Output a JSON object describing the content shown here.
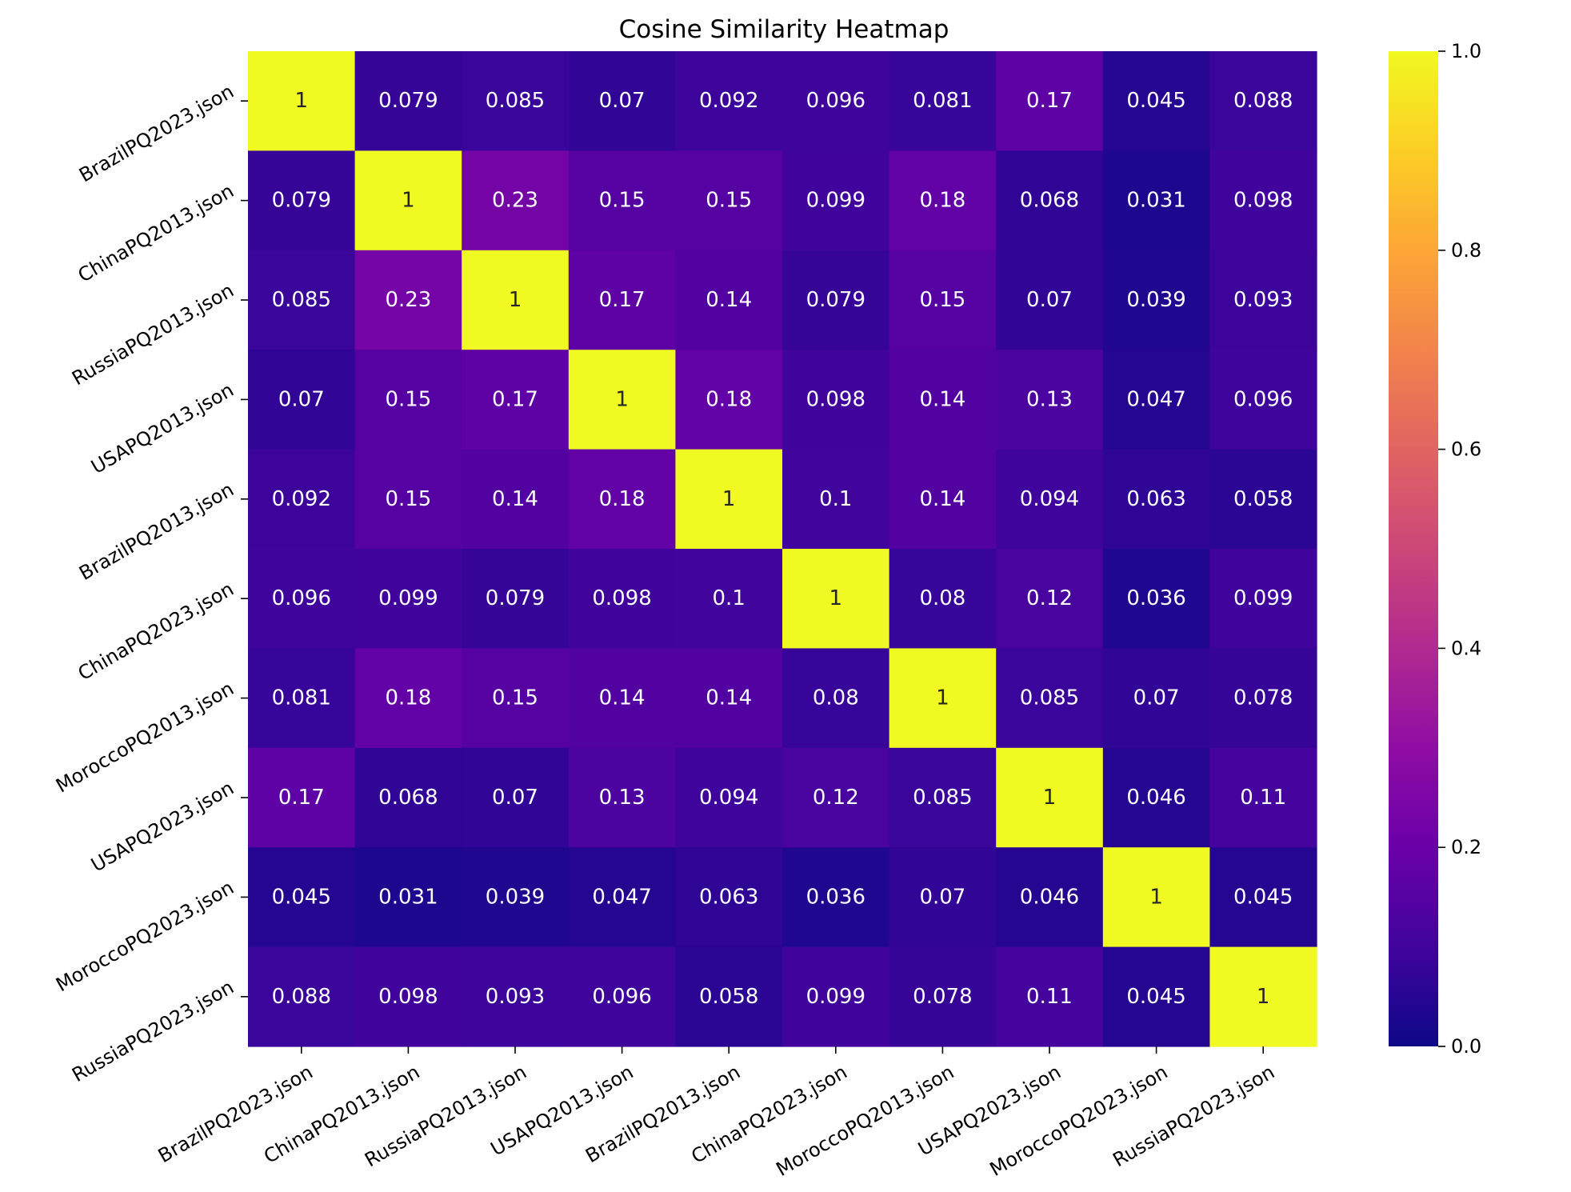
{
  "chart_data": {
    "type": "heatmap",
    "title": "Cosine Similarity Heatmap",
    "xlabel": "",
    "ylabel": "",
    "colormap": "plasma",
    "x_categories": [
      "BrazilPQ2023.json",
      "ChinaPQ2013.json",
      "RussiaPQ2013.json",
      "USAPQ2013.json",
      "BrazilPQ2013.json",
      "ChinaPQ2023.json",
      "MoroccoPQ2013.json",
      "USAPQ2023.json",
      "MoroccoPQ2023.json",
      "RussiaPQ2023.json"
    ],
    "y_categories": [
      "BrazilPQ2023.json",
      "ChinaPQ2013.json",
      "RussiaPQ2013.json",
      "USAPQ2013.json",
      "BrazilPQ2013.json",
      "ChinaPQ2023.json",
      "MoroccoPQ2013.json",
      "USAPQ2023.json",
      "MoroccoPQ2023.json",
      "RussiaPQ2023.json"
    ],
    "values": [
      [
        1,
        0.079,
        0.085,
        0.07,
        0.092,
        0.096,
        0.081,
        0.17,
        0.045,
        0.088
      ],
      [
        0.079,
        1,
        0.23,
        0.15,
        0.15,
        0.099,
        0.18,
        0.068,
        0.031,
        0.098
      ],
      [
        0.085,
        0.23,
        1,
        0.17,
        0.14,
        0.079,
        0.15,
        0.07,
        0.039,
        0.093
      ],
      [
        0.07,
        0.15,
        0.17,
        1,
        0.18,
        0.098,
        0.14,
        0.13,
        0.047,
        0.096
      ],
      [
        0.092,
        0.15,
        0.14,
        0.18,
        1,
        0.1,
        0.14,
        0.094,
        0.063,
        0.058
      ],
      [
        0.096,
        0.099,
        0.079,
        0.098,
        0.1,
        1,
        0.08,
        0.12,
        0.036,
        0.099
      ],
      [
        0.081,
        0.18,
        0.15,
        0.14,
        0.14,
        0.08,
        1,
        0.085,
        0.07,
        0.078
      ],
      [
        0.17,
        0.068,
        0.07,
        0.13,
        0.094,
        0.12,
        0.085,
        1,
        0.046,
        0.11
      ],
      [
        0.045,
        0.031,
        0.039,
        0.047,
        0.063,
        0.036,
        0.07,
        0.046,
        1,
        0.045
      ],
      [
        0.088,
        0.098,
        0.093,
        0.096,
        0.058,
        0.099,
        0.078,
        0.11,
        0.045,
        1
      ]
    ],
    "colorbar": {
      "range": [
        0.0,
        1.0
      ],
      "ticks": [
        0.0,
        0.2,
        0.4,
        0.6,
        0.8,
        1.0
      ],
      "tick_labels": [
        "0.0",
        "0.2",
        "0.4",
        "0.6",
        "0.8",
        "1.0"
      ]
    }
  }
}
